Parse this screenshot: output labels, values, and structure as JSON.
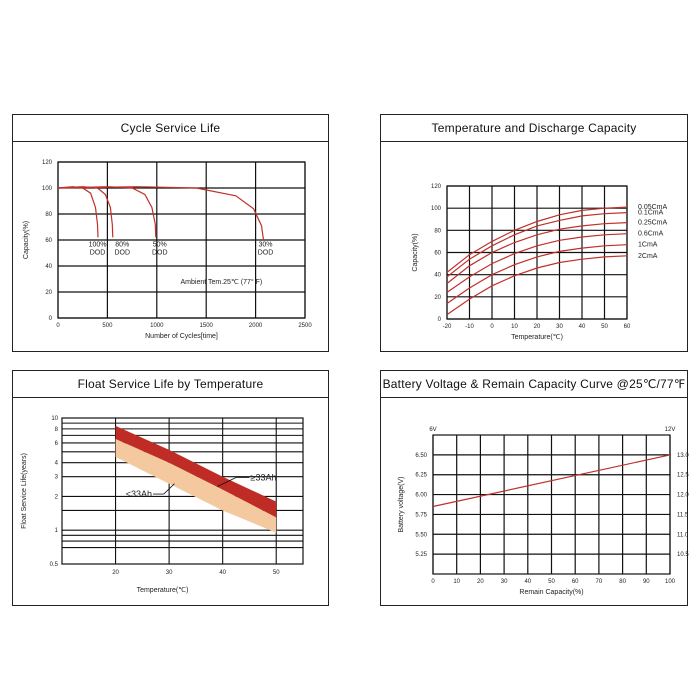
{
  "chart_data": [
    {
      "id": "cycle",
      "type": "line",
      "title": "Cycle Service Life",
      "xlabel": "Number of Cycles[time]",
      "ylabel": "Capacity(%)",
      "xlim": [
        0,
        2500
      ],
      "ylim": [
        0,
        120
      ],
      "xticks": [
        0,
        500,
        1000,
        1500,
        2000,
        2500
      ],
      "yticks": [
        0,
        20,
        40,
        60,
        80,
        100,
        120
      ],
      "grid": true,
      "annotation": "Ambient Tem.25℃ (77° F)",
      "series": [
        {
          "name": "100% DOD",
          "color": "#c0302a",
          "x": [
            0,
            150,
            250,
            330,
            380,
            400,
            405
          ],
          "y": [
            100,
            101,
            100,
            96,
            85,
            72,
            62
          ]
        },
        {
          "name": "80% DOD",
          "color": "#c0302a",
          "x": [
            0,
            250,
            400,
            480,
            530,
            550,
            555
          ],
          "y": [
            100,
            101,
            100,
            95,
            85,
            72,
            62
          ]
        },
        {
          "name": "50% DOD",
          "color": "#c0302a",
          "x": [
            0,
            500,
            750,
            880,
            950,
            985,
            990
          ],
          "y": [
            100,
            101,
            100,
            95,
            85,
            72,
            62
          ]
        },
        {
          "name": "30% DOD",
          "color": "#c0302a",
          "x": [
            0,
            800,
            1400,
            1800,
            1980,
            2060,
            2080
          ],
          "y": [
            100,
            101,
            100,
            94,
            84,
            71,
            60
          ]
        }
      ],
      "labels": [
        {
          "text": "100%",
          "text2": "DOD",
          "x": 400,
          "y": 55
        },
        {
          "text": "80%",
          "text2": "DOD",
          "x": 650,
          "y": 55
        },
        {
          "text": "50%",
          "text2": "DOD",
          "x": 1030,
          "y": 55
        },
        {
          "text": "30%",
          "text2": "DOD",
          "x": 2100,
          "y": 55
        }
      ]
    },
    {
      "id": "tempcap",
      "type": "line",
      "title": "Temperature and Discharge Capacity",
      "xlabel": "Temperature(℃)",
      "ylabel": "Capacity(%)",
      "xlim": [
        -20,
        60
      ],
      "ylim": [
        0,
        120
      ],
      "xticks": [
        -20,
        -10,
        0,
        10,
        20,
        30,
        40,
        50,
        60
      ],
      "yticks": [
        0,
        20,
        40,
        60,
        80,
        100,
        120
      ],
      "grid": true,
      "series": [
        {
          "name": "0.05CmA",
          "color": "#c0302a",
          "x": [
            -20,
            -10,
            0,
            10,
            20,
            30,
            40,
            50,
            60
          ],
          "y": [
            42,
            58,
            70,
            80,
            88,
            94,
            98,
            100,
            101
          ]
        },
        {
          "name": "0.1CmA",
          "color": "#c0302a",
          "x": [
            -20,
            -10,
            0,
            10,
            20,
            30,
            40,
            50,
            60
          ],
          "y": [
            38,
            54,
            66,
            76,
            84,
            89,
            93,
            95,
            96
          ]
        },
        {
          "name": "0.25CmA",
          "color": "#c0302a",
          "x": [
            -20,
            -10,
            0,
            10,
            20,
            30,
            40,
            50,
            60
          ],
          "y": [
            32,
            48,
            60,
            69,
            76,
            81,
            84,
            86,
            87
          ]
        },
        {
          "name": "0.6CmA",
          "color": "#c0302a",
          "x": [
            -20,
            -10,
            0,
            10,
            20,
            30,
            40,
            50,
            60
          ],
          "y": [
            24,
            38,
            50,
            59,
            66,
            71,
            74,
            76,
            77
          ]
        },
        {
          "name": "1CmA",
          "color": "#c0302a",
          "x": [
            -20,
            -10,
            0,
            10,
            20,
            30,
            40,
            50,
            60
          ],
          "y": [
            14,
            28,
            40,
            49,
            56,
            61,
            64,
            66,
            67
          ]
        },
        {
          "name": "2CmA",
          "color": "#c0302a",
          "x": [
            -20,
            -10,
            0,
            10,
            20,
            30,
            40,
            50,
            60
          ],
          "y": [
            4,
            18,
            30,
            39,
            46,
            51,
            54,
            56,
            57
          ]
        }
      ]
    },
    {
      "id": "float",
      "type": "area",
      "title": "Float Service Life by Temperature",
      "xlabel": "Temperature(℃)",
      "ylabel": "Float Service Life(years)",
      "xlim": [
        10,
        55
      ],
      "ylim": [
        0.5,
        10
      ],
      "yscale": "log",
      "xticks": [
        20,
        30,
        40,
        50
      ],
      "yticks": [
        0.5,
        1,
        2,
        3,
        4,
        6,
        8,
        10
      ],
      "ygrid": [
        0.7,
        0.8,
        0.9,
        1,
        1.5,
        2,
        3,
        4,
        5,
        6,
        7,
        8,
        9,
        10
      ],
      "grid": true,
      "bands": [
        {
          "name": "≥33Ah",
          "color": "#bf2b25",
          "x": [
            20,
            30,
            40,
            50
          ],
          "upper": [
            8.5,
            5.2,
            3.0,
            1.8
          ],
          "lower": [
            6.5,
            4.0,
            2.3,
            1.3
          ]
        },
        {
          "name": "<33Ah",
          "color": "#f4c9a0",
          "x": [
            20,
            30,
            40,
            50
          ],
          "upper": [
            6.5,
            4.0,
            2.3,
            1.3
          ],
          "lower": [
            4.5,
            2.6,
            1.5,
            0.95
          ]
        }
      ]
    },
    {
      "id": "voltage",
      "type": "line",
      "title": "Battery Voltage & Remain Capacity Curve @25℃/77℉",
      "xlabel": "Remain Capacity(%)",
      "ylabel": "Battery voltage(V)",
      "xlim": [
        0,
        100
      ],
      "ylim": [
        5.0,
        6.75
      ],
      "xticks": [
        0,
        10,
        20,
        30,
        40,
        50,
        60,
        70,
        80,
        90,
        100
      ],
      "yticks": [
        5.25,
        5.5,
        5.75,
        6.0,
        6.25,
        6.5
      ],
      "yticks_labels": [
        "5.25",
        "5.50",
        "5.75",
        "6.00",
        "6.25",
        "6.50"
      ],
      "y2ticks_labels": [
        "10.5",
        "11.0",
        "11.5",
        "12.0",
        "12.5",
        "13.0"
      ],
      "ylabel_top": "6V",
      "y2label_top": "12V",
      "grid": true,
      "series": [
        {
          "name": "",
          "color": "#c0302a",
          "x": [
            0,
            100
          ],
          "y": [
            5.85,
            6.5
          ]
        }
      ]
    }
  ]
}
